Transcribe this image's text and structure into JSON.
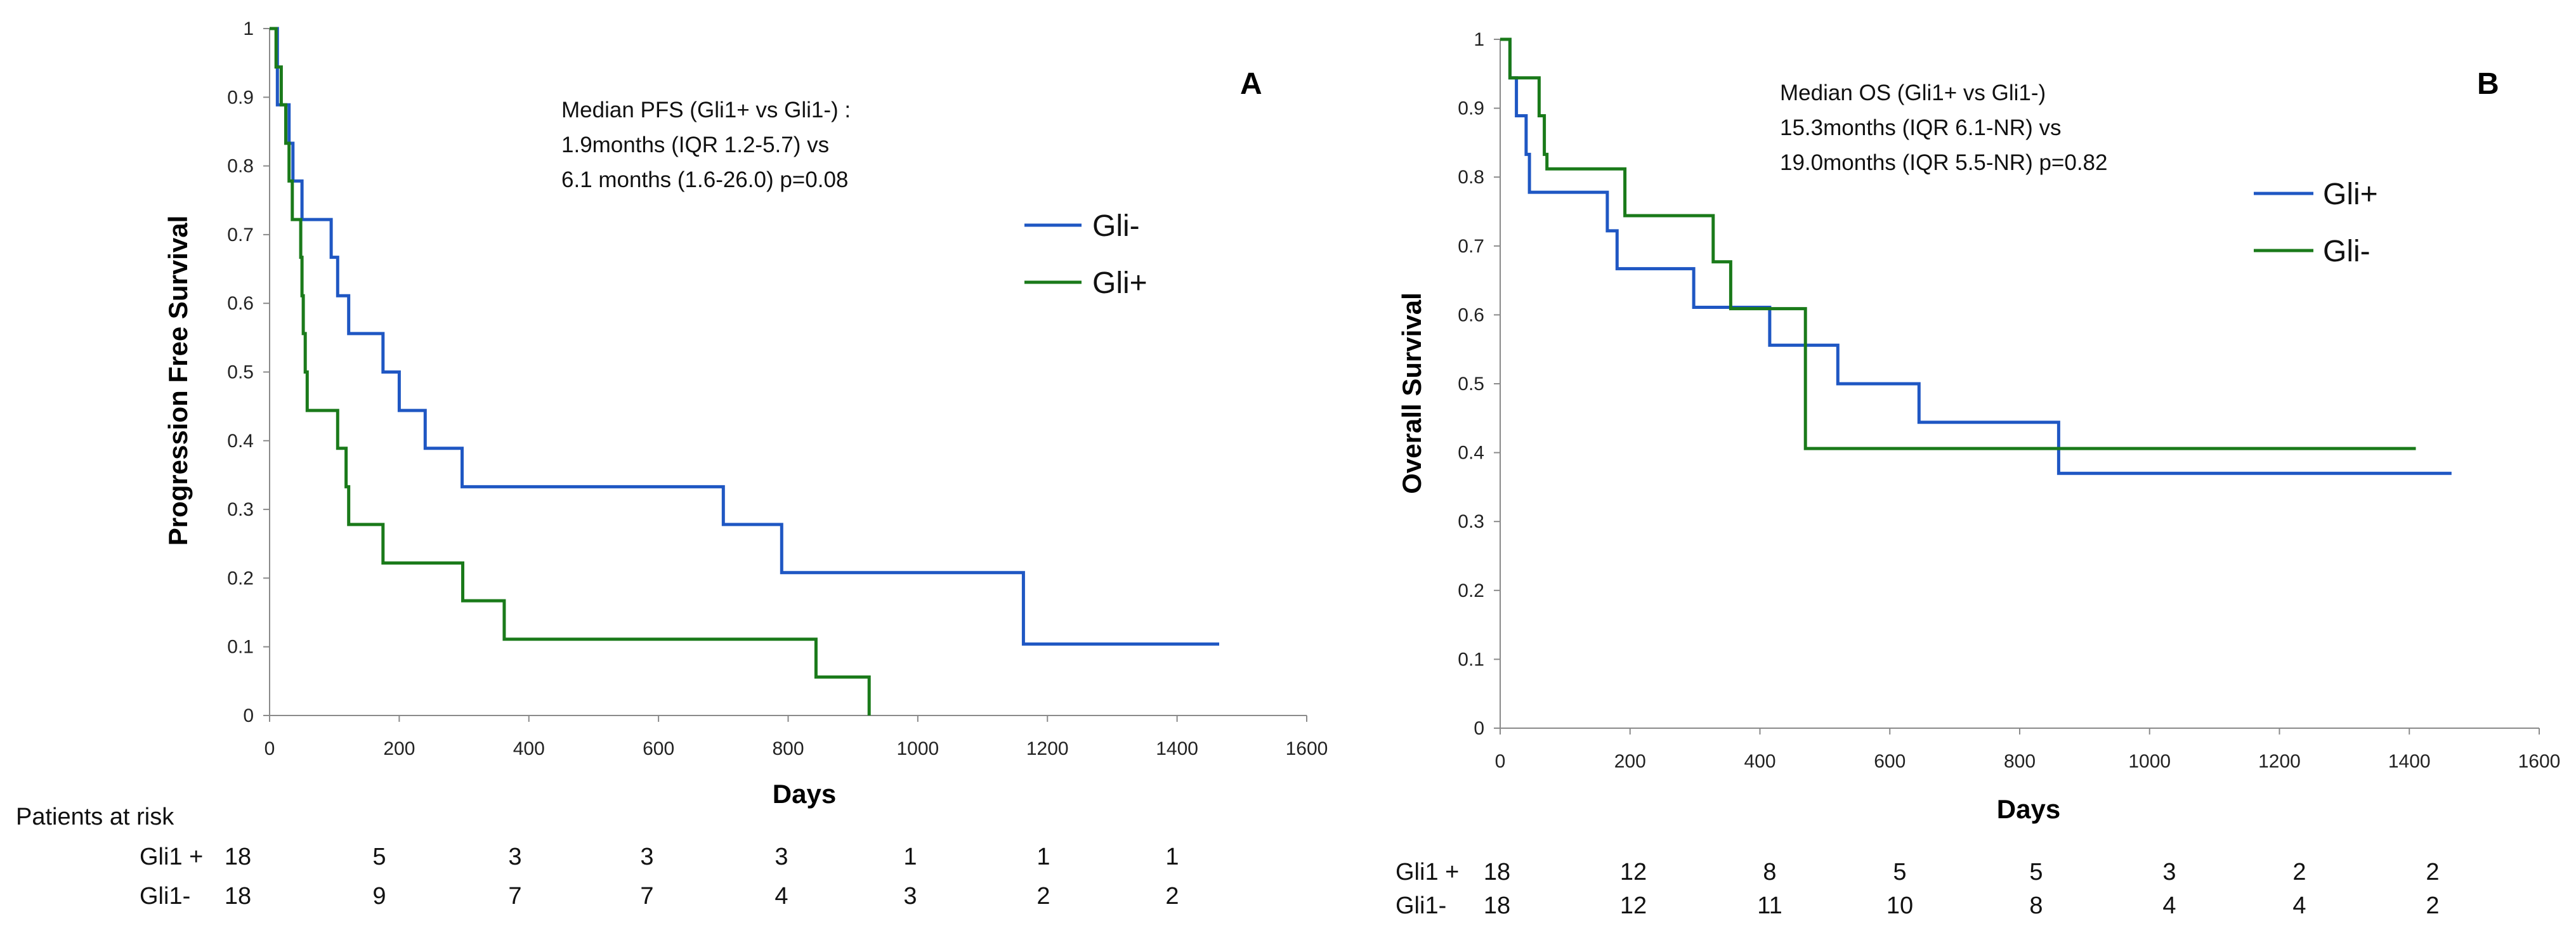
{
  "colors": {
    "blue": "#1f57c3",
    "green": "#1a7a1a"
  },
  "chart_data": [
    {
      "type": "line",
      "id": "A",
      "panel_label": "A",
      "xlabel": "Days",
      "ylabel": "Progression Free Survival",
      "xlim": [
        0,
        1600
      ],
      "ylim": [
        0,
        1
      ],
      "xticks": [
        "0",
        "200",
        "400",
        "600",
        "800",
        "1000",
        "1200",
        "1400",
        "1600"
      ],
      "yticks": [
        "0",
        "0.1",
        "0.2",
        "0.3",
        "0.4",
        "0.5",
        "0.6",
        "0.7",
        "0.8",
        "0.9",
        "1"
      ],
      "annotation": [
        "Median PFS (Gli1+ vs Gli1-) :",
        "1.9months (IQR 1.2-5.7) vs",
        "6.1 months (1.6-26.0) p=0.08"
      ],
      "series": [
        {
          "name": "Gli-",
          "color": "blue",
          "points": [
            [
              0,
              1
            ],
            [
              12,
              1
            ],
            [
              12,
              0.889
            ],
            [
              30,
              0.889
            ],
            [
              30,
              0.833
            ],
            [
              36,
              0.833
            ],
            [
              36,
              0.778
            ],
            [
              50,
              0.778
            ],
            [
              50,
              0.722
            ],
            [
              95,
              0.722
            ],
            [
              95,
              0.667
            ],
            [
              105,
              0.667
            ],
            [
              105,
              0.611
            ],
            [
              122,
              0.611
            ],
            [
              122,
              0.556
            ],
            [
              175,
              0.556
            ],
            [
              175,
              0.5
            ],
            [
              200,
              0.5
            ],
            [
              200,
              0.444
            ],
            [
              240,
              0.444
            ],
            [
              240,
              0.389
            ],
            [
              297,
              0.389
            ],
            [
              297,
              0.333
            ],
            [
              700,
              0.333
            ],
            [
              700,
              0.278
            ],
            [
              790,
              0.278
            ],
            [
              790,
              0.208
            ],
            [
              1163,
              0.208
            ],
            [
              1163,
              0.104
            ],
            [
              1465,
              0.104
            ]
          ]
        },
        {
          "name": "Gli+",
          "color": "green",
          "points": [
            [
              0,
              1
            ],
            [
              10,
              1
            ],
            [
              10,
              0.944
            ],
            [
              18,
              0.944
            ],
            [
              18,
              0.889
            ],
            [
              25,
              0.889
            ],
            [
              25,
              0.833
            ],
            [
              30,
              0.833
            ],
            [
              30,
              0.778
            ],
            [
              35,
              0.778
            ],
            [
              35,
              0.722
            ],
            [
              48,
              0.722
            ],
            [
              48,
              0.667
            ],
            [
              50,
              0.667
            ],
            [
              50,
              0.611
            ],
            [
              52,
              0.611
            ],
            [
              52,
              0.556
            ],
            [
              55,
              0.556
            ],
            [
              55,
              0.5
            ],
            [
              58,
              0.5
            ],
            [
              58,
              0.444
            ],
            [
              105,
              0.444
            ],
            [
              105,
              0.389
            ],
            [
              118,
              0.389
            ],
            [
              118,
              0.333
            ],
            [
              122,
              0.333
            ],
            [
              122,
              0.278
            ],
            [
              175,
              0.278
            ],
            [
              175,
              0.222
            ],
            [
              298,
              0.222
            ],
            [
              298,
              0.167
            ],
            [
              362,
              0.167
            ],
            [
              362,
              0.111
            ],
            [
              843,
              0.111
            ],
            [
              843,
              0.056
            ],
            [
              925,
              0.056
            ],
            [
              925,
              0
            ]
          ]
        }
      ],
      "legend": [
        "Gli-",
        "Gli+"
      ],
      "risk_table": {
        "title": "Patients at risk",
        "rows": [
          {
            "label": "Gli1 +",
            "values": [
              "18",
              "5",
              "3",
              "3",
              "3",
              "1",
              "1",
              "1"
            ]
          },
          {
            "label": "Gli1-",
            "values": [
              "18",
              "9",
              "7",
              "7",
              "4",
              "3",
              "2",
              "2"
            ]
          }
        ]
      }
    },
    {
      "type": "line",
      "id": "B",
      "panel_label": "B",
      "xlabel": "Days",
      "ylabel": "Overall Survival",
      "xlim": [
        0,
        1600
      ],
      "ylim": [
        0,
        1
      ],
      "xticks": [
        "0",
        "200",
        "400",
        "600",
        "800",
        "1000",
        "1200",
        "1400",
        "1600"
      ],
      "yticks": [
        "0",
        "0.1",
        "0.2",
        "0.3",
        "0.4",
        "0.5",
        "0.6",
        "0.7",
        "0.8",
        "0.9",
        "1"
      ],
      "annotation": [
        "Median OS (Gli1+ vs Gli1-)",
        "15.3months (IQR 6.1-NR) vs",
        "19.0months (IQR 5.5-NR) p=0.82"
      ],
      "series": [
        {
          "name": "Gli+",
          "color": "blue",
          "points": [
            [
              0,
              1
            ],
            [
              15,
              1
            ],
            [
              15,
              0.944
            ],
            [
              25,
              0.944
            ],
            [
              25,
              0.889
            ],
            [
              40,
              0.889
            ],
            [
              40,
              0.833
            ],
            [
              45,
              0.833
            ],
            [
              45,
              0.778
            ],
            [
              165,
              0.778
            ],
            [
              165,
              0.722
            ],
            [
              180,
              0.722
            ],
            [
              180,
              0.667
            ],
            [
              298,
              0.667
            ],
            [
              298,
              0.611
            ],
            [
              415,
              0.611
            ],
            [
              415,
              0.556
            ],
            [
              520,
              0.556
            ],
            [
              520,
              0.5
            ],
            [
              645,
              0.5
            ],
            [
              645,
              0.444
            ],
            [
              860,
              0.444
            ],
            [
              860,
              0.37
            ],
            [
              1465,
              0.37
            ]
          ]
        },
        {
          "name": "Gli-",
          "color": "green",
          "points": [
            [
              0,
              1
            ],
            [
              15,
              1
            ],
            [
              15,
              0.944
            ],
            [
              60,
              0.944
            ],
            [
              60,
              0.889
            ],
            [
              68,
              0.889
            ],
            [
              68,
              0.833
            ],
            [
              72,
              0.833
            ],
            [
              72,
              0.812
            ],
            [
              192,
              0.812
            ],
            [
              192,
              0.744
            ],
            [
              328,
              0.744
            ],
            [
              328,
              0.677
            ],
            [
              355,
              0.677
            ],
            [
              355,
              0.609
            ],
            [
              470,
              0.609
            ],
            [
              470,
              0.406
            ],
            [
              1410,
              0.406
            ]
          ]
        }
      ],
      "legend": [
        "Gli+",
        "Gli-"
      ],
      "risk_table": {
        "title": "",
        "rows": [
          {
            "label": "Gli1 +",
            "values": [
              "18",
              "12",
              "8",
              "5",
              "5",
              "3",
              "2",
              "2"
            ]
          },
          {
            "label": "Gli1-",
            "values": [
              "18",
              "12",
              "11",
              "10",
              "8",
              "4",
              "4",
              "2"
            ]
          }
        ]
      }
    }
  ]
}
